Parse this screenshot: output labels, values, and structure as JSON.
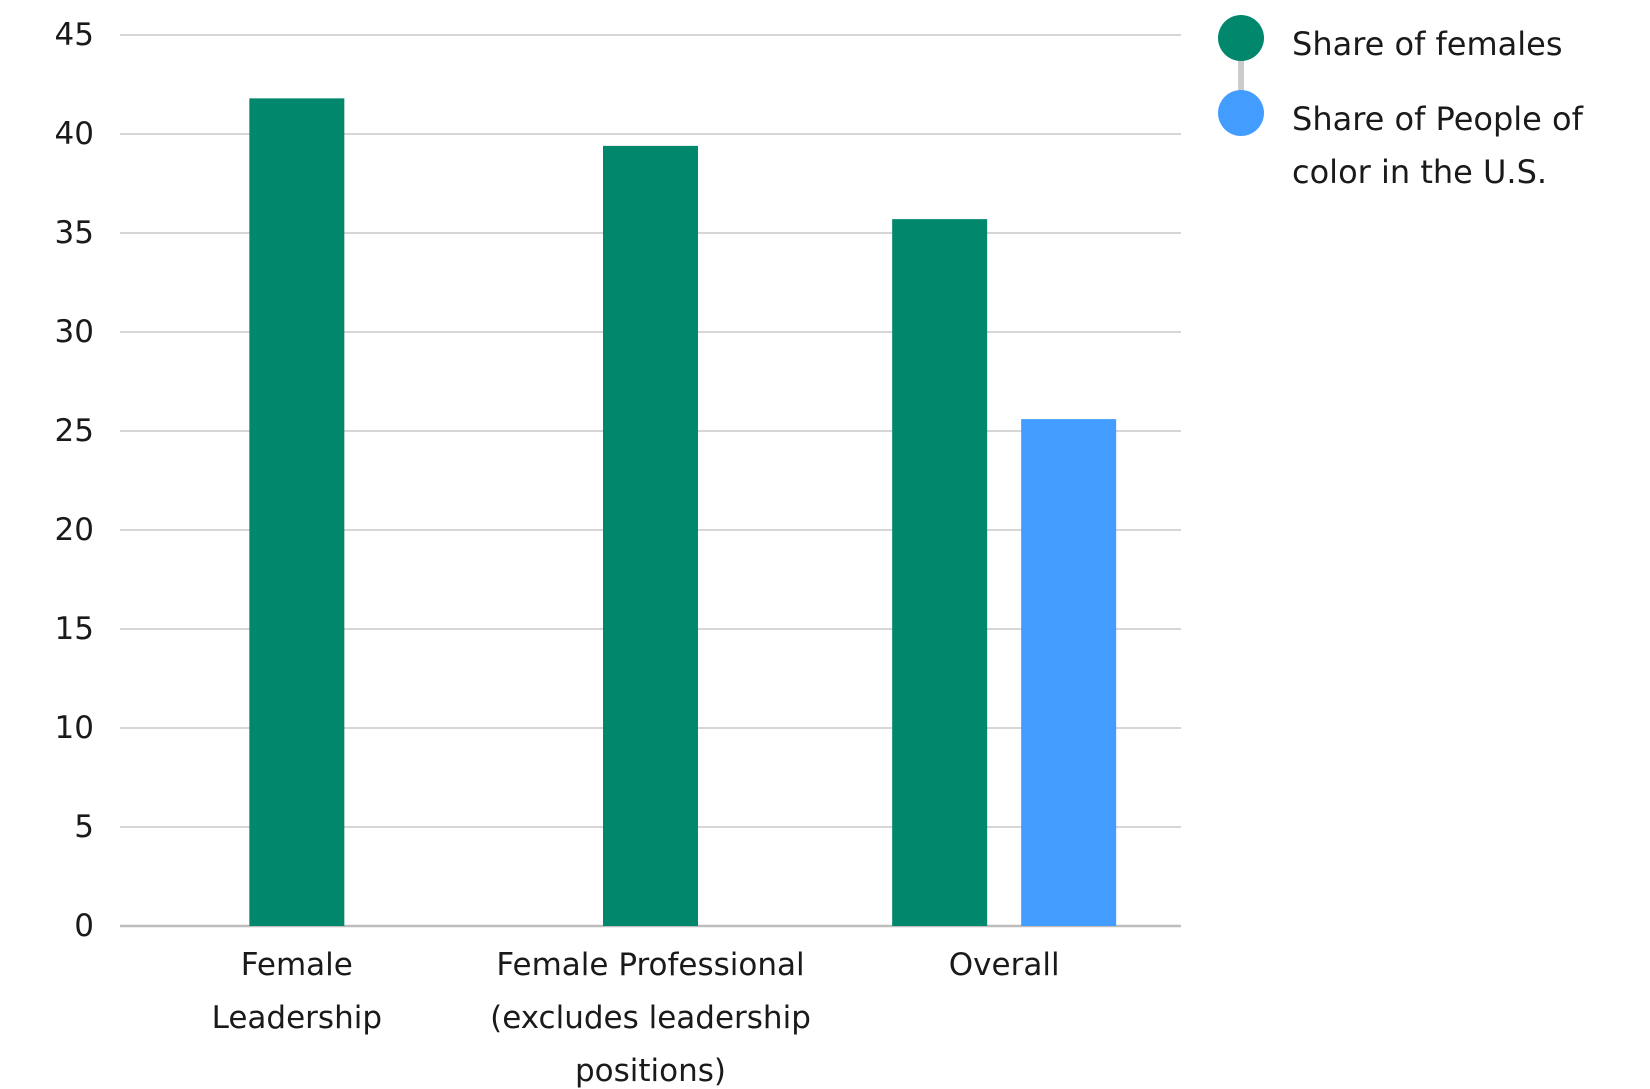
{
  "chart_data": {
    "type": "bar",
    "title": "",
    "xlabel": "",
    "ylabel": "",
    "categories": [
      [
        "Female",
        "Leadership"
      ],
      [
        "Female Professional",
        "(excludes leadership",
        "positions)"
      ],
      [
        "Overall"
      ]
    ],
    "series": [
      {
        "name": "Share of females",
        "color": "#00876C",
        "values": [
          41.8,
          39.4,
          35.7
        ]
      },
      {
        "name": "Share of People of color in the U.S.",
        "color": "#439CFF",
        "values": [
          null,
          null,
          25.6
        ]
      }
    ],
    "ylim": [
      0,
      45
    ],
    "yticks": [
      0,
      5,
      10,
      15,
      20,
      25,
      30,
      35,
      40,
      45
    ],
    "grid": true,
    "legend": {
      "placement": "top-right",
      "entries": [
        {
          "lines": [
            "Share of females"
          ],
          "color": "#00876C"
        },
        {
          "lines": [
            "Share of People of",
            "color in the U.S."
          ],
          "color": "#439CFF"
        }
      ],
      "connector_color": "#cccccc"
    },
    "gridline_color": "#d6d6d6",
    "baseline_color": "#bdbdbd"
  }
}
